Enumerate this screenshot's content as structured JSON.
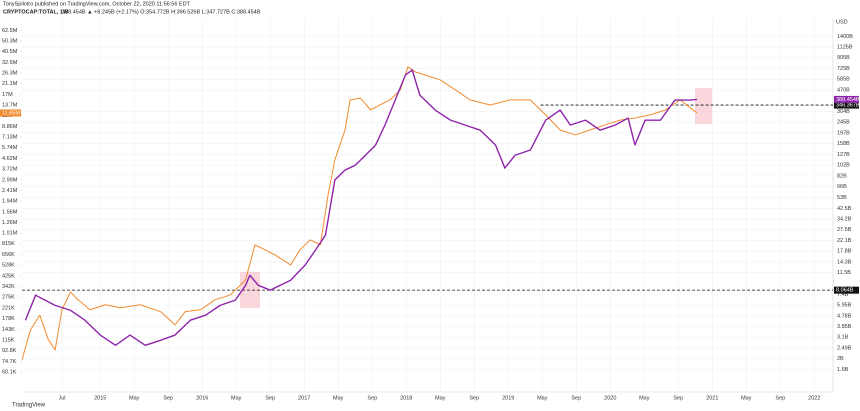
{
  "chart_data": {
    "type": "line",
    "publisher": "TonySpilotro published on TradingView.com, October 22, 2020 11:56:56 EDT",
    "title": "CRYPTOCAP:TOTAL, 1W",
    "quote": "388.454B ▲ +8.245B (+2.17%) O:354.772B H:396.526B L:347.727B C:388.454B",
    "y2label": "USD",
    "footer": "TradingView",
    "log_scale": true,
    "grid": true,
    "xlim": [
      -9.2,
      86.2
    ],
    "xticks": [
      {
        "value": -4.5,
        "label": "Jul"
      },
      {
        "value": 0,
        "label": "2015"
      },
      {
        "value": 4,
        "label": "May"
      },
      {
        "value": 8,
        "label": "Sep"
      },
      {
        "value": 12,
        "label": "2016"
      },
      {
        "value": 16,
        "label": "May"
      },
      {
        "value": 20,
        "label": "Sep"
      },
      {
        "value": 24,
        "label": "2017"
      },
      {
        "value": 28,
        "label": "May"
      },
      {
        "value": 32,
        "label": "Sep"
      },
      {
        "value": 36,
        "label": "2018"
      },
      {
        "value": 40,
        "label": "May"
      },
      {
        "value": 44,
        "label": "Sep"
      },
      {
        "value": 48,
        "label": "2019"
      },
      {
        "value": 52,
        "label": "May"
      },
      {
        "value": 56,
        "label": "Sep"
      },
      {
        "value": 60,
        "label": "2020"
      },
      {
        "value": 64,
        "label": "May"
      },
      {
        "value": 68,
        "label": "Sep"
      },
      {
        "value": 72,
        "label": "2021"
      },
      {
        "value": 76,
        "label": "May"
      },
      {
        "value": 80,
        "label": "Sep"
      },
      {
        "value": 84,
        "label": "2022"
      }
    ],
    "ylim": [
      51100,
      64200000
    ],
    "yticks": [
      {
        "value": 62500000,
        "label": "62.5M"
      },
      {
        "value": 50300000,
        "label": "50.3M"
      },
      {
        "value": 40500000,
        "label": "40.5M"
      },
      {
        "value": 32600000,
        "label": "32.6M"
      },
      {
        "value": 26300000,
        "label": "26.3M"
      },
      {
        "value": 21100000,
        "label": "21.1M"
      },
      {
        "value": 17000000,
        "label": "17M"
      },
      {
        "value": 13700000,
        "label": "13.7M"
      },
      {
        "value": 11000000,
        "label": "11M"
      },
      {
        "value": 8860000,
        "label": "8.86M"
      },
      {
        "value": 7130000,
        "label": "7.13M"
      },
      {
        "value": 5740000,
        "label": "5.74M"
      },
      {
        "value": 4620000,
        "label": "4.62M"
      },
      {
        "value": 3720000,
        "label": "3.72M"
      },
      {
        "value": 2990000,
        "label": "2.99M"
      },
      {
        "value": 2410000,
        "label": "2.41M"
      },
      {
        "value": 1940000,
        "label": "1.94M"
      },
      {
        "value": 1560000,
        "label": "1.56M"
      },
      {
        "value": 1260000,
        "label": "1.26M"
      },
      {
        "value": 1010000,
        "label": "1.01M"
      },
      {
        "value": 815000,
        "label": "815K"
      },
      {
        "value": 656000,
        "label": "656K"
      },
      {
        "value": 528000,
        "label": "528K"
      },
      {
        "value": 425000,
        "label": "425K"
      },
      {
        "value": 342000,
        "label": "342K"
      },
      {
        "value": 275000,
        "label": "275K"
      },
      {
        "value": 221000,
        "label": "221K"
      },
      {
        "value": 178000,
        "label": "178K"
      },
      {
        "value": 143000,
        "label": "143K"
      },
      {
        "value": 115000,
        "label": "115K"
      },
      {
        "value": 92800,
        "label": "92.8K"
      },
      {
        "value": 74700,
        "label": "74.7K"
      },
      {
        "value": 60100,
        "label": "60.1K"
      }
    ],
    "y2lim": [
      1.3,
      1624
    ],
    "y2ticks": [
      {
        "value": 1400,
        "label": "1400B"
      },
      {
        "value": 1125,
        "label": "1125B"
      },
      {
        "value": 905,
        "label": "905B"
      },
      {
        "value": 725,
        "label": "725B"
      },
      {
        "value": 585,
        "label": "585B"
      },
      {
        "value": 470,
        "label": "470B"
      },
      {
        "value": 304,
        "label": "304B"
      },
      {
        "value": 245,
        "label": "245B"
      },
      {
        "value": 197,
        "label": "197B"
      },
      {
        "value": 158,
        "label": "158B"
      },
      {
        "value": 127,
        "label": "127B"
      },
      {
        "value": 102,
        "label": "102B"
      },
      {
        "value": 82,
        "label": "82B"
      },
      {
        "value": 66,
        "label": "66B"
      },
      {
        "value": 53,
        "label": "53B"
      },
      {
        "value": 42.5,
        "label": "42.5B"
      },
      {
        "value": 34.2,
        "label": "34.2B"
      },
      {
        "value": 27.5,
        "label": "27.5B"
      },
      {
        "value": 22.1,
        "label": "22.1B"
      },
      {
        "value": 17.8,
        "label": "17.8B"
      },
      {
        "value": 14.3,
        "label": "14.3B"
      },
      {
        "value": 11.5,
        "label": "11.5B"
      },
      {
        "value": 7.4,
        "label": "7.4B"
      },
      {
        "value": 5.95,
        "label": "5.95B"
      },
      {
        "value": 4.78,
        "label": "4.78B"
      },
      {
        "value": 3.85,
        "label": "3.85B"
      },
      {
        "value": 3.1,
        "label": "3.1B"
      },
      {
        "value": 2.49,
        "label": "2.49B"
      },
      {
        "value": 2.0,
        "label": "2B"
      },
      {
        "value": 1.6,
        "label": "1.6B"
      }
    ],
    "hlines": [
      {
        "value": 346.367,
        "label": "346.367B",
        "x_start": 51.8,
        "axis": "y2"
      },
      {
        "value": 8.064,
        "label": "8.064B",
        "x_start": -9.2,
        "axis": "y2"
      }
    ],
    "series": [
      {
        "color": "#f28a2e",
        "axis": "y",
        "last_label": "11.65M",
        "x": [
          -9.2,
          -8.2,
          -7.1,
          -6.1,
          -5.3,
          -4.5,
          -3.5,
          -2.6,
          -1.2,
          0.6,
          2.4,
          4.7,
          7.1,
          8.8,
          10,
          11.8,
          13.5,
          15.3,
          17.1,
          18.2,
          19.4,
          20.6,
          22.4,
          23.5,
          24.7,
          25.9,
          26.8,
          27.6,
          28.8,
          29.4,
          30.6,
          31.8,
          32.9,
          34.1,
          35.3,
          36.2,
          37.1,
          38.2,
          40,
          41.8,
          43.5,
          45.9,
          48.2,
          50.6,
          52.4,
          54.1,
          55.9,
          57.6,
          59.4,
          61.2,
          62.9,
          64.7,
          66.5,
          68.2,
          70.2
        ],
        "values": [
          76900,
          142000,
          191000,
          116000,
          94100,
          213000,
          306000,
          261000,
          213000,
          236000,
          222000,
          236000,
          205000,
          157000,
          205000,
          213000,
          261000,
          288000,
          391000,
          797000,
          721000,
          648000,
          530000,
          721000,
          883000,
          797000,
          2200000,
          4480000,
          8240000,
          15200000,
          15800000,
          12400000,
          13700000,
          15200000,
          18600000,
          29700000,
          26800000,
          25200000,
          22800000,
          18600000,
          15200000,
          13700000,
          15200000,
          15200000,
          11200000,
          8240000,
          7450000,
          8240000,
          9130000,
          10100000,
          10500000,
          11200000,
          12400000,
          15200000,
          11650000
        ]
      },
      {
        "color": "#8e24aa",
        "axis": "y2",
        "last_label": "388.454B",
        "x": [
          -8.8,
          -7.6,
          -6.5,
          -5.3,
          -3.5,
          -1.8,
          0,
          1.8,
          3.5,
          5.3,
          7.1,
          8.8,
          10.6,
          12.4,
          14.1,
          15.9,
          17.1,
          17.6,
          18.6,
          20,
          22.4,
          24.1,
          25.3,
          26.5,
          27.6,
          28.8,
          30,
          31.2,
          32.4,
          33.5,
          34.7,
          35.9,
          36.7,
          37.6,
          39.4,
          41.2,
          42.9,
          44.7,
          46.5,
          47.6,
          48.8,
          50.6,
          52.4,
          54.1,
          55.3,
          57.1,
          58.8,
          60.6,
          62.1,
          62.9,
          64.1,
          65.9,
          67.6,
          69.4,
          70.2
        ],
        "values": [
          4.38,
          7.28,
          6.59,
          5.92,
          5.36,
          4.38,
          3.24,
          2.63,
          3.24,
          2.63,
          2.91,
          3.24,
          4.38,
          4.85,
          5.92,
          6.59,
          8.9,
          10.9,
          8.9,
          8.06,
          9.87,
          13.4,
          18.1,
          24.7,
          75.6,
          92.5,
          102,
          125,
          154,
          231,
          383,
          638,
          706,
          424,
          313,
          255,
          231,
          208,
          154,
          96.3,
          125,
          139,
          255,
          313,
          231,
          255,
          208,
          231,
          266,
          154,
          255,
          255,
          383,
          383,
          388.454
        ]
      }
    ]
  }
}
